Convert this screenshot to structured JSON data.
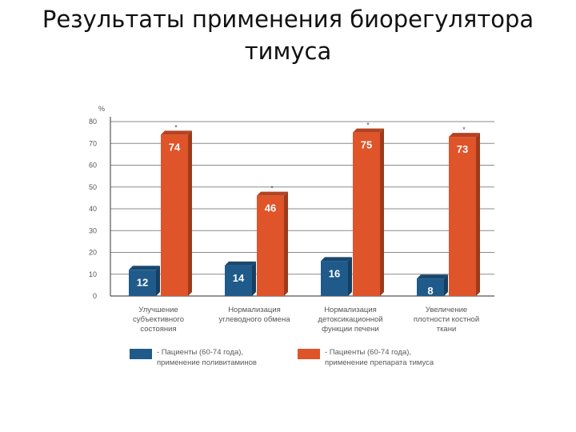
{
  "title_line1": "Результаты применения биорегулятора",
  "title_line2": "тимуса",
  "chart_data": {
    "type": "bar",
    "ylabel": "%",
    "ylim": [
      0,
      80
    ],
    "yticks": [
      0,
      10,
      20,
      30,
      40,
      50,
      60,
      70,
      80
    ],
    "grid": true,
    "legend_position": "bottom",
    "categories": [
      [
        "Улучшение",
        "субъективного",
        "состояния"
      ],
      [
        "Нормализация",
        "углеводного обмена"
      ],
      [
        "Нормализация",
        "детоксикационной",
        "функции печени"
      ],
      [
        "Увеличение",
        "плотности костной",
        "ткани"
      ]
    ],
    "series": [
      {
        "name": "- Пациенты (60-74 года), применение поливитаминов",
        "legend_lines": [
          "- Пациенты (60-74 года),",
          "применение поливитаминов"
        ],
        "color": "#1f5a8a",
        "values": [
          12,
          14,
          16,
          8
        ],
        "markers": [
          "",
          "",
          "",
          ""
        ]
      },
      {
        "name": "- Пациенты (60-74 года), применение препарата тимуса",
        "legend_lines": [
          "- Пациенты (60-74 года),",
          "применение препарата тимуса"
        ],
        "color": "#e0542a",
        "values": [
          74,
          46,
          75,
          73
        ],
        "markers": [
          "*",
          "*",
          "*",
          "*"
        ]
      }
    ]
  }
}
